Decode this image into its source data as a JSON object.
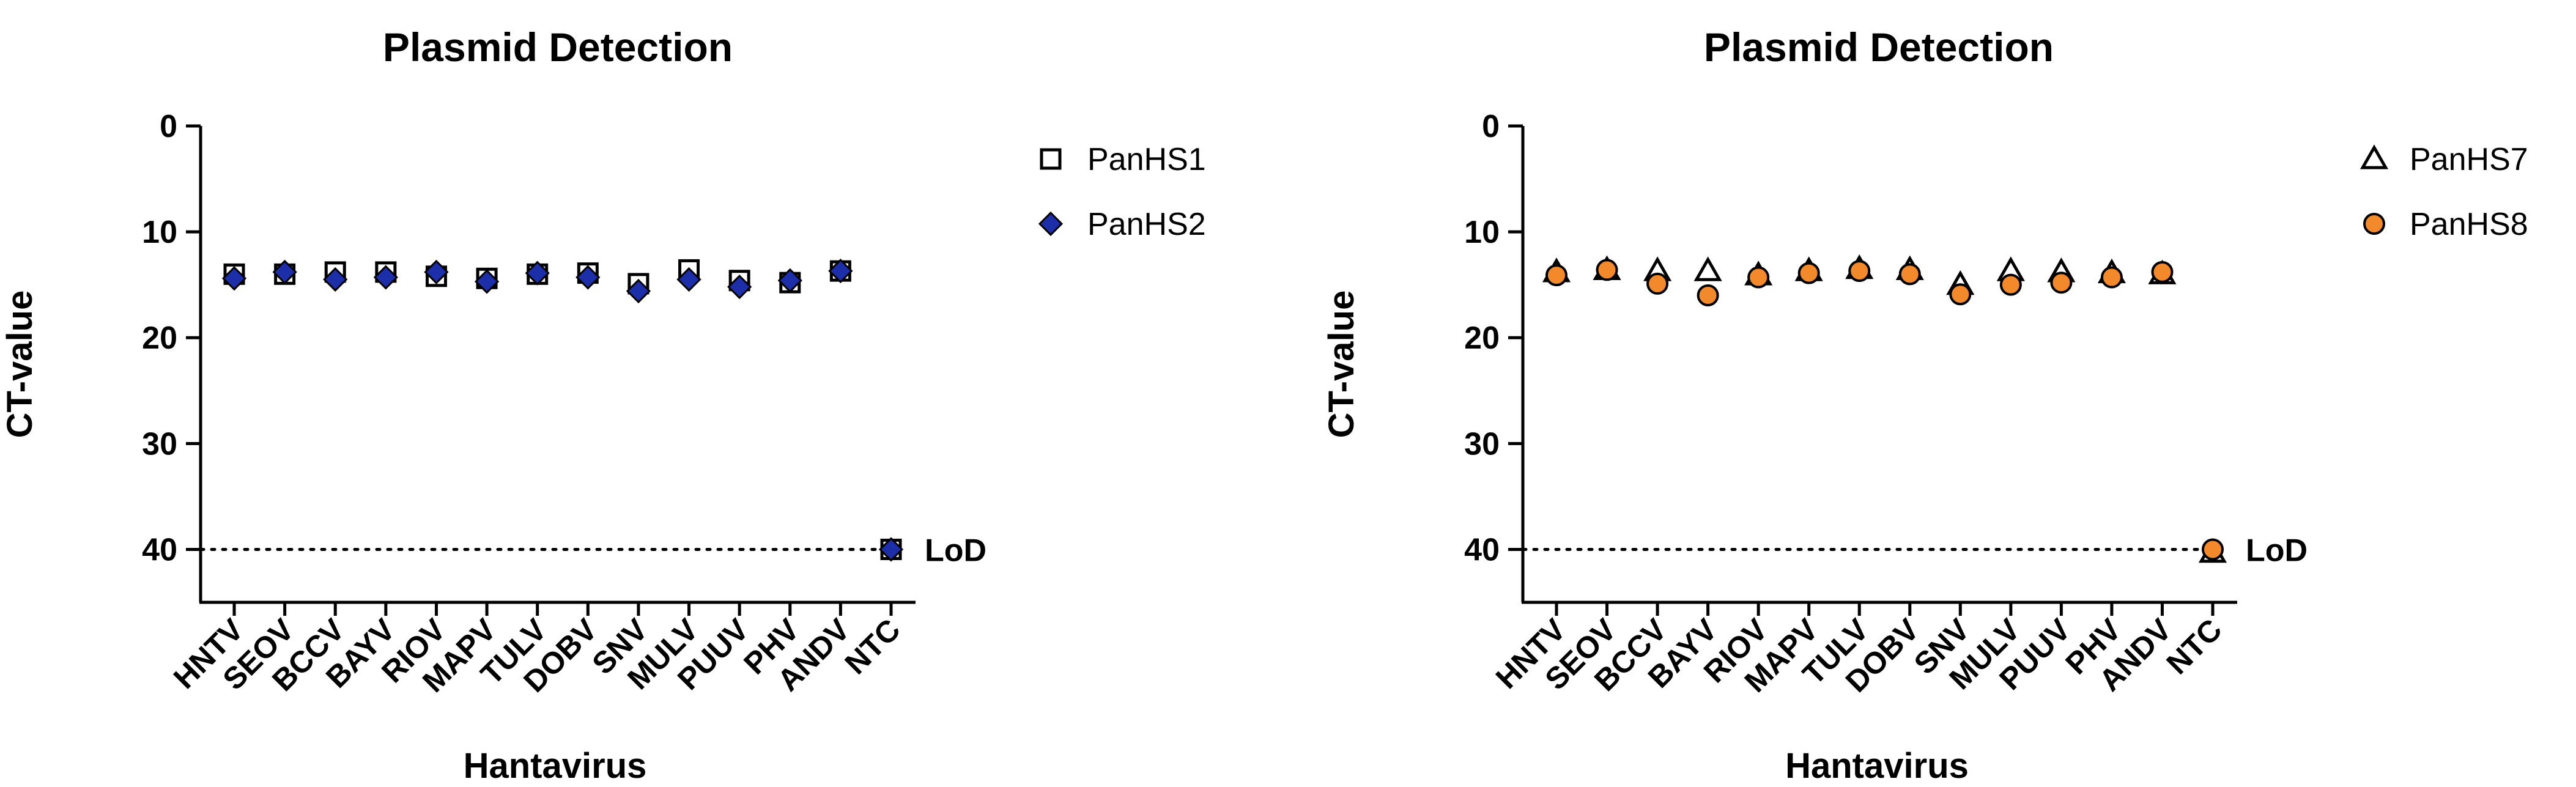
{
  "chart_data": [
    {
      "type": "scatter",
      "title": "Plasmid Detection",
      "xlabel": "Hantavirus",
      "ylabel": "CT-value",
      "ylim": [
        0,
        45
      ],
      "yticks": [
        0,
        10,
        20,
        30,
        40
      ],
      "y_inverted": true,
      "categories": [
        "HNTV",
        "SEOV",
        "BCCV",
        "BAYV",
        "RIOV",
        "MAPV",
        "TULV",
        "DOBV",
        "SNV",
        "MULV",
        "PUUV",
        "PHV",
        "ANDV",
        "NTC"
      ],
      "reference_line": {
        "value": 40,
        "label": "LoD",
        "style": "dotted"
      },
      "legend_position": "top-right",
      "series": [
        {
          "name": "PanHS1",
          "marker": "square",
          "color": "#ffffff",
          "edge": "#000000",
          "values": [
            14.0,
            14.0,
            13.8,
            13.8,
            14.2,
            14.4,
            14.0,
            13.9,
            14.9,
            13.6,
            14.6,
            14.8,
            13.7,
            40.0
          ]
        },
        {
          "name": "PanHS2",
          "marker": "diamond",
          "color": "#1c2fa8",
          "edge": "#000000",
          "values": [
            14.4,
            13.8,
            14.5,
            14.3,
            13.8,
            14.7,
            13.9,
            14.3,
            15.6,
            14.5,
            15.2,
            14.6,
            13.7,
            40.0
          ]
        }
      ]
    },
    {
      "type": "scatter",
      "title": "Plasmid Detection",
      "xlabel": "Hantavirus",
      "ylabel": "CT-value",
      "ylim": [
        0,
        45
      ],
      "yticks": [
        0,
        10,
        20,
        30,
        40
      ],
      "y_inverted": true,
      "categories": [
        "HNTV",
        "SEOV",
        "BCCV",
        "BAYV",
        "RIOV",
        "MAPV",
        "TULV",
        "DOBV",
        "SNV",
        "MULV",
        "PUUV",
        "PHV",
        "ANDV",
        "NTC"
      ],
      "reference_line": {
        "value": 40,
        "label": "LoD",
        "style": "dotted"
      },
      "legend_position": "top-right",
      "series": [
        {
          "name": "PanHS7",
          "marker": "triangle",
          "color": "#ffffff",
          "edge": "#000000",
          "values": [
            13.8,
            13.6,
            13.7,
            13.7,
            14.1,
            13.7,
            13.5,
            13.6,
            15.0,
            13.7,
            13.8,
            13.9,
            14.0,
            40.3
          ]
        },
        {
          "name": "PanHS8",
          "marker": "circle",
          "color": "#f28a2b",
          "edge": "#000000",
          "values": [
            14.1,
            13.6,
            14.9,
            16.0,
            14.3,
            13.9,
            13.7,
            14.0,
            15.9,
            15.0,
            14.8,
            14.3,
            13.8,
            40.0
          ]
        }
      ]
    }
  ]
}
